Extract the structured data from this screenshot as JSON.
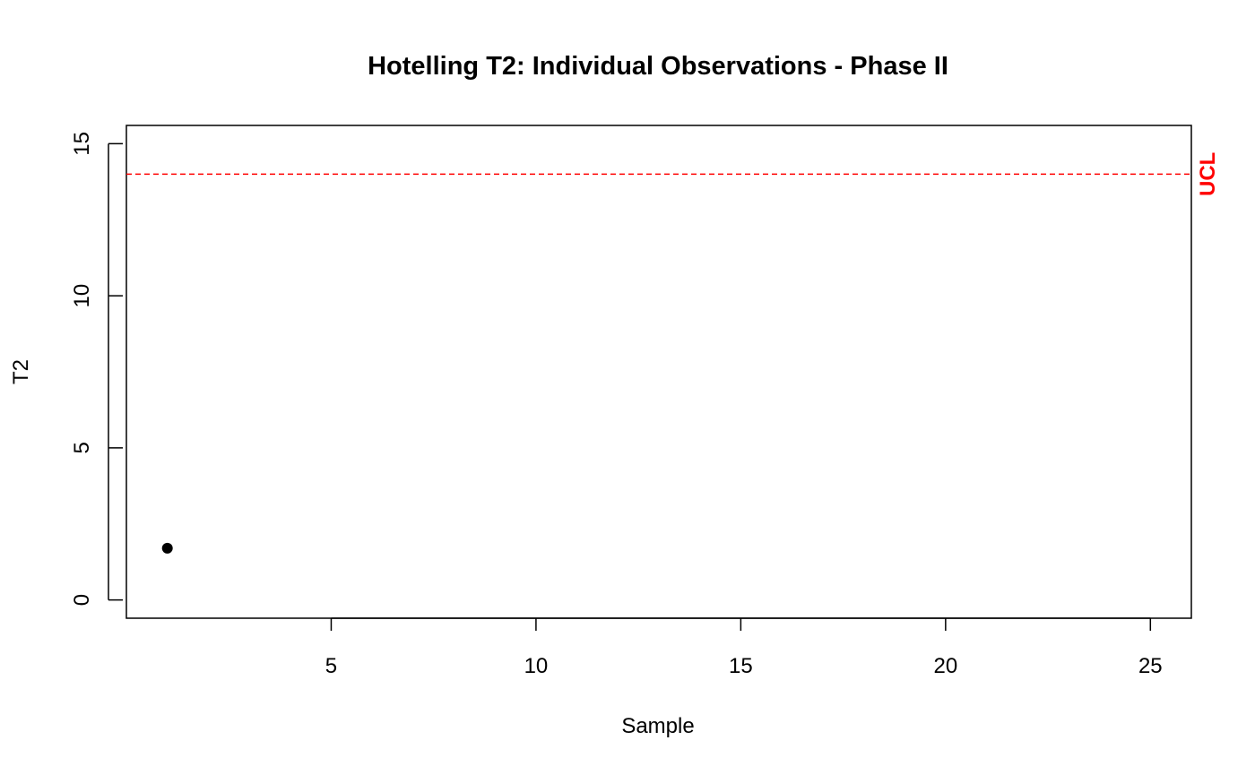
{
  "chart_data": {
    "type": "scatter",
    "title": "Hotelling T2: Individual Observations - Phase II",
    "xlabel": "Sample",
    "ylabel": "T2",
    "xlim": [
      0,
      26
    ],
    "ylim": [
      -0.6,
      15.6
    ],
    "x_ticks": [
      5,
      10,
      15,
      20,
      25
    ],
    "y_ticks": [
      0,
      5,
      10,
      15
    ],
    "points": [
      {
        "x": 1,
        "y": 1.7
      }
    ],
    "reference_lines": [
      {
        "label": "UCL",
        "y": 14.0,
        "style": "dashed",
        "color": "#ff0000"
      }
    ],
    "grid": false
  }
}
